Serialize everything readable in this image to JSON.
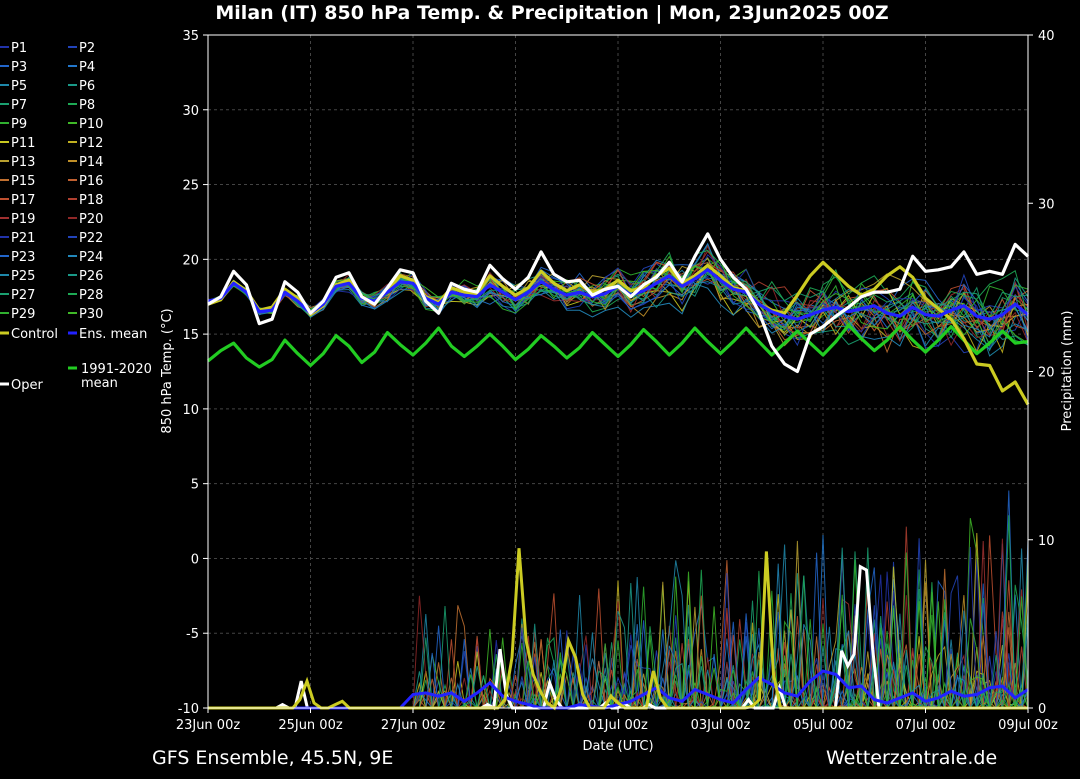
{
  "chart_data": {
    "type": "line",
    "title": "Milan  (IT)  850 hPa Temp. & Precipitation | Mon, 23Jun2025 00Z",
    "xlabel": "Date (UTC)",
    "ylabel": "850 hPa Temp. (°C)",
    "y2label": "Precipitation (mm)",
    "ylim": [
      -10,
      35
    ],
    "y2lim": [
      0,
      40
    ],
    "yticks": [
      "35",
      "30",
      "25",
      "20",
      "15",
      "10",
      "5",
      "0",
      "-5",
      "-10"
    ],
    "y2ticks": [
      "40",
      "30",
      "20",
      "10",
      "0"
    ],
    "xticks": [
      "23Jun 00z",
      "25Jun 00z",
      "27Jun 00z",
      "29Jun 00z",
      "01Jul 00z",
      "03Jul 00z",
      "05Jul 00z",
      "07Jul 00z",
      "09Jul 00z"
    ],
    "grid": true,
    "legend_position": "left",
    "footer_left": "GFS Ensemble, 45.5N, 9E",
    "footer_right": "Wetterzentrale.de",
    "legend": [
      {
        "label": "P1",
        "color": "#2233aa"
      },
      {
        "label": "P2",
        "color": "#2244bb"
      },
      {
        "label": "P3",
        "color": "#2266cc"
      },
      {
        "label": "P4",
        "color": "#2277cc"
      },
      {
        "label": "P5",
        "color": "#1e88aa"
      },
      {
        "label": "P6",
        "color": "#1a9988"
      },
      {
        "label": "P7",
        "color": "#1aa070"
      },
      {
        "label": "P8",
        "color": "#1eaa55"
      },
      {
        "label": "P9",
        "color": "#30b030"
      },
      {
        "label": "P10",
        "color": "#40b828"
      },
      {
        "label": "P11",
        "color": "#c8c820"
      },
      {
        "label": "P12",
        "color": "#c0b020"
      },
      {
        "label": "P13",
        "color": "#b8a030"
      },
      {
        "label": "P14",
        "color": "#c09028"
      },
      {
        "label": "P15",
        "color": "#c07030"
      },
      {
        "label": "P16",
        "color": "#c06030"
      },
      {
        "label": "P17",
        "color": "#c05030"
      },
      {
        "label": "P18",
        "color": "#b04030"
      },
      {
        "label": "P19",
        "color": "#a03030"
      },
      {
        "label": "P20",
        "color": "#902828"
      },
      {
        "label": "P21",
        "color": "#2233aa"
      },
      {
        "label": "P22",
        "color": "#2244bb"
      },
      {
        "label": "P23",
        "color": "#2266cc"
      },
      {
        "label": "P24",
        "color": "#2288bb"
      },
      {
        "label": "P25",
        "color": "#1e88aa"
      },
      {
        "label": "P26",
        "color": "#1a9988"
      },
      {
        "label": "P27",
        "color": "#1aa070"
      },
      {
        "label": "P28",
        "color": "#1eaa55"
      },
      {
        "label": "P29",
        "color": "#30b030"
      },
      {
        "label": "P30",
        "color": "#40b828"
      },
      {
        "label": "Control",
        "color": "#cccc22"
      },
      {
        "label": "Ens. mean",
        "color": "#2222ff"
      },
      {
        "label": "Oper",
        "color": "#ffffff"
      },
      {
        "label": "1991-2020 mean",
        "color": "#22cc22"
      }
    ],
    "series": [
      {
        "name": "Oper",
        "color": "#ffffff",
        "values": [
          17.0,
          17.5,
          19.2,
          18.3,
          15.7,
          16.0,
          18.5,
          17.8,
          16.4,
          17.2,
          18.8,
          19.1,
          17.5,
          17.0,
          18.1,
          19.3,
          19.1,
          17.2,
          16.4,
          18.4,
          18.0,
          17.8,
          19.6,
          18.7,
          18.0,
          18.8,
          20.5,
          19.0,
          18.5,
          18.6,
          17.6,
          18.0,
          18.2,
          17.5,
          18.3,
          18.8,
          19.8,
          18.5,
          20.2,
          21.7,
          20.0,
          18.8,
          18.0,
          16.5,
          14.2,
          13.0,
          12.5,
          15.0,
          15.5,
          16.2,
          16.8,
          17.5,
          17.8,
          17.8,
          18.0,
          20.2,
          19.2,
          19.3,
          19.5,
          20.5,
          19.0,
          19.2,
          19.0,
          21.0,
          20.2
        ]
      },
      {
        "name": "Ens. mean",
        "color": "#2222ff",
        "values": [
          17.2,
          17.4,
          18.4,
          17.8,
          16.5,
          16.6,
          17.8,
          17.2,
          16.4,
          17.0,
          18.2,
          18.4,
          17.4,
          17.2,
          17.8,
          18.5,
          18.4,
          17.4,
          17.0,
          17.8,
          17.6,
          17.5,
          18.3,
          17.8,
          17.3,
          17.8,
          18.5,
          18.0,
          17.6,
          17.8,
          17.5,
          17.7,
          18.2,
          17.6,
          17.9,
          18.4,
          18.9,
          18.2,
          18.7,
          19.3,
          18.6,
          18.0,
          17.8,
          17.0,
          16.5,
          16.2,
          16.0,
          16.3,
          16.6,
          16.8,
          16.5,
          16.7,
          16.9,
          16.4,
          16.2,
          16.8,
          16.3,
          16.2,
          16.6,
          16.9,
          16.2,
          16.0,
          16.3,
          17.0,
          16.3
        ]
      },
      {
        "name": "Control",
        "color": "#cccc22",
        "values": [
          17.0,
          17.3,
          18.5,
          17.9,
          16.6,
          16.8,
          18.0,
          17.4,
          16.3,
          16.9,
          18.3,
          18.6,
          17.4,
          17.1,
          17.9,
          18.9,
          18.6,
          17.5,
          17.1,
          18.1,
          17.8,
          17.7,
          18.9,
          18.2,
          17.6,
          18.1,
          19.2,
          18.4,
          17.9,
          18.3,
          17.8,
          18.0,
          18.6,
          17.9,
          18.1,
          18.9,
          19.4,
          18.4,
          18.9,
          19.6,
          18.9,
          18.1,
          17.9,
          17.0,
          16.6,
          16.4,
          17.6,
          18.9,
          19.8,
          19.0,
          18.2,
          17.6,
          18.0,
          18.9,
          19.5,
          18.8,
          17.4,
          16.7,
          16.0,
          14.7,
          13.0,
          12.9,
          11.2,
          11.8,
          10.3
        ]
      },
      {
        "name": "1991-2020 mean",
        "color": "#22cc22",
        "values": [
          13.2,
          13.9,
          14.4,
          13.4,
          12.8,
          13.3,
          14.6,
          13.7,
          12.9,
          13.7,
          14.9,
          14.2,
          13.1,
          13.8,
          15.1,
          14.3,
          13.6,
          14.4,
          15.4,
          14.2,
          13.5,
          14.2,
          15.0,
          14.2,
          13.3,
          14.0,
          14.9,
          14.2,
          13.4,
          14.1,
          15.1,
          14.3,
          13.5,
          14.3,
          15.3,
          14.5,
          13.6,
          14.4,
          15.4,
          14.5,
          13.7,
          14.5,
          15.4,
          14.5,
          13.6,
          14.4,
          15.2,
          14.4,
          13.6,
          14.5,
          15.6,
          14.7,
          13.9,
          14.6,
          15.5,
          14.6,
          13.8,
          14.6,
          15.5,
          14.6,
          13.7,
          14.4,
          15.2,
          14.4,
          14.5
        ]
      }
    ],
    "precipitation_series": [
      {
        "name": "Oper",
        "color": "#ffffff",
        "mm": [
          0,
          0,
          0,
          0,
          0,
          0,
          0,
          0,
          0,
          0,
          0,
          0,
          0.2,
          0,
          0,
          1.6,
          0,
          0,
          0,
          0,
          0,
          0,
          0,
          0,
          0,
          0,
          0,
          0,
          0,
          0,
          0,
          0,
          0,
          0,
          0,
          0,
          0,
          0,
          0,
          0,
          0,
          0,
          0,
          0,
          0,
          0.2,
          0,
          3.5,
          0.8,
          0,
          0,
          0,
          0,
          0,
          0,
          1.5,
          0.5,
          0,
          0,
          0,
          0,
          0,
          0,
          0,
          0.3,
          0,
          0,
          0.3,
          0,
          0,
          0,
          0.2,
          0,
          0,
          0,
          0,
          0,
          0,
          0,
          0,
          0,
          0,
          0,
          0,
          0,
          0,
          0,
          0.5,
          0,
          0,
          0,
          0,
          1.2,
          0,
          0,
          0,
          0,
          0,
          0,
          0,
          0,
          0,
          3.4,
          2.5,
          3.2,
          8.4,
          8.2,
          3.5,
          0,
          0,
          0,
          0,
          0,
          0,
          0,
          0,
          0,
          0,
          0,
          0,
          0,
          0,
          0,
          0,
          0,
          0,
          0,
          0,
          0,
          0,
          0,
          0,
          0
        ]
      },
      {
        "name": "Ens. mean",
        "color": "#2222ff",
        "values_note": "",
        "mm": [
          0,
          0,
          0,
          0,
          0,
          0,
          0,
          0,
          0,
          0,
          0,
          0,
          0,
          0,
          0,
          0,
          0.8,
          0.9,
          0.7,
          0.9,
          0.4,
          0.9,
          1.5,
          0.7,
          0.4,
          0.2,
          0,
          0,
          0,
          0.2,
          0.1,
          0,
          0.2,
          0.4,
          0.8,
          1.2,
          0.6,
          0.4,
          1.1,
          0.8,
          0.5,
          0.3,
          1.1,
          1.8,
          1.4,
          0.9,
          0.7,
          1.6,
          2.2,
          2.0,
          1.2,
          1.3,
          0.5,
          0.3,
          0.6,
          0.9,
          0.4,
          0.6,
          1.0,
          0.7,
          0.8,
          1.2,
          1.3,
          0.6,
          1.1
        ]
      },
      {
        "name": "Control",
        "color": "#cccc22",
        "mm": [
          0,
          0,
          0,
          0,
          0,
          0,
          0,
          0,
          0,
          0,
          0,
          0,
          0,
          0.5,
          1.6,
          0.3,
          0,
          0,
          0.2,
          0.4,
          0,
          0,
          0,
          0,
          0,
          0,
          0,
          0,
          0,
          0,
          0,
          0,
          0,
          0,
          0,
          0,
          0,
          0,
          0,
          0,
          0,
          0,
          0.5,
          3.0,
          9.5,
          4.0,
          2.0,
          1.0,
          0.3,
          0,
          1.2,
          4.0,
          3.0,
          0.8,
          0,
          0,
          0,
          0.7,
          0.3,
          0,
          0,
          0,
          0,
          2.2,
          0.6,
          0,
          0,
          0,
          0,
          0,
          0,
          0,
          0,
          0,
          0,
          0,
          0,
          0.1,
          0.5,
          9.3,
          2.0,
          0,
          0,
          0,
          0,
          0,
          0,
          0,
          0,
          0,
          0,
          0,
          0,
          0,
          0,
          0,
          0,
          0,
          0,
          0,
          0,
          0,
          0,
          0,
          0,
          0,
          0,
          0,
          0,
          0,
          0,
          0,
          0,
          0,
          0,
          0,
          0
        ]
      }
    ]
  }
}
